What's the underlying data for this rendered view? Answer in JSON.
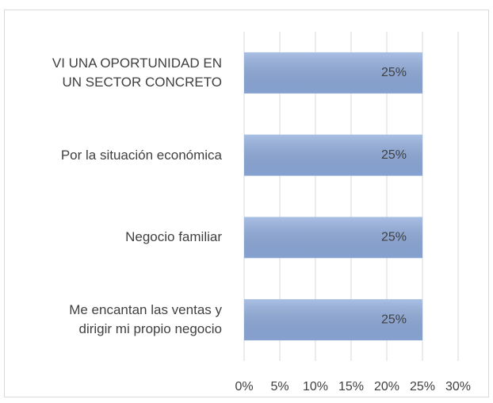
{
  "chart_data": {
    "type": "hbar",
    "categories": [
      "VI UNA OPORTUNIDAD EN\nUN SECTOR CONCRETO",
      "Por la situación económica",
      "Negocio familiar",
      "Me encantan las ventas y\ndirigir mi propio negocio"
    ],
    "values": [
      25,
      25,
      25,
      25
    ],
    "value_labels": [
      "25%",
      "25%",
      "25%",
      "25%"
    ],
    "color": "#8eaadb",
    "xlim": [
      0,
      30
    ],
    "xticks": [
      {
        "value": 0,
        "label": "0%"
      },
      {
        "value": 5,
        "label": "5%"
      },
      {
        "value": 10,
        "label": "10%"
      },
      {
        "value": 15,
        "label": "15%"
      },
      {
        "value": 20,
        "label": "20%"
      },
      {
        "value": 25,
        "label": "25%"
      },
      {
        "value": 30,
        "label": "30%"
      }
    ],
    "grid": true
  }
}
